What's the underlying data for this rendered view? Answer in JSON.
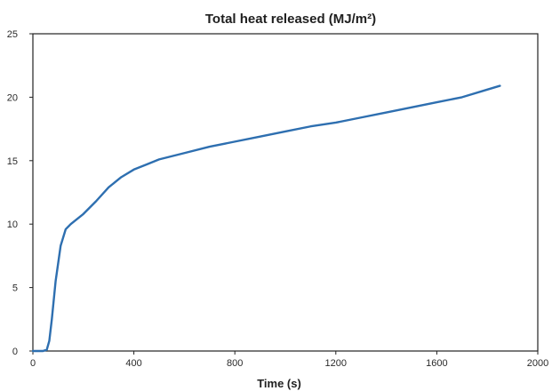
{
  "chart_data": {
    "type": "line",
    "title": "Total heat released (MJ/m²)",
    "xlabel": "Time (s)",
    "ylabel": "",
    "xlim": [
      0,
      2000
    ],
    "ylim": [
      0,
      25
    ],
    "xticks": [
      0,
      400,
      800,
      1200,
      1600,
      2000
    ],
    "xtick_labels": [
      "0",
      "400",
      "800",
      "1200",
      "1600",
      "2000"
    ],
    "yticks": [
      0,
      5,
      10,
      15,
      20,
      25
    ],
    "ytick_labels": [
      "0",
      "5",
      "10",
      "15",
      "20",
      "25"
    ],
    "grid": false,
    "legend": "none",
    "line_color": "#2e6fb0",
    "series": [
      {
        "x": [
          0,
          40,
          55,
          65,
          75,
          90,
          110,
          130,
          150,
          200,
          250,
          300,
          350,
          400,
          450,
          500,
          600,
          700,
          800,
          900,
          1000,
          1100,
          1200,
          1300,
          1400,
          1500,
          1600,
          1700,
          1800,
          1850
        ],
        "y": [
          0,
          0,
          0.1,
          0.8,
          2.5,
          5.5,
          8.3,
          9.6,
          10.0,
          10.8,
          11.8,
          12.9,
          13.7,
          14.3,
          14.7,
          15.1,
          15.6,
          16.1,
          16.5,
          16.9,
          17.3,
          17.7,
          18.0,
          18.4,
          18.8,
          19.2,
          19.6,
          20.0,
          20.6,
          20.9
        ]
      }
    ]
  }
}
